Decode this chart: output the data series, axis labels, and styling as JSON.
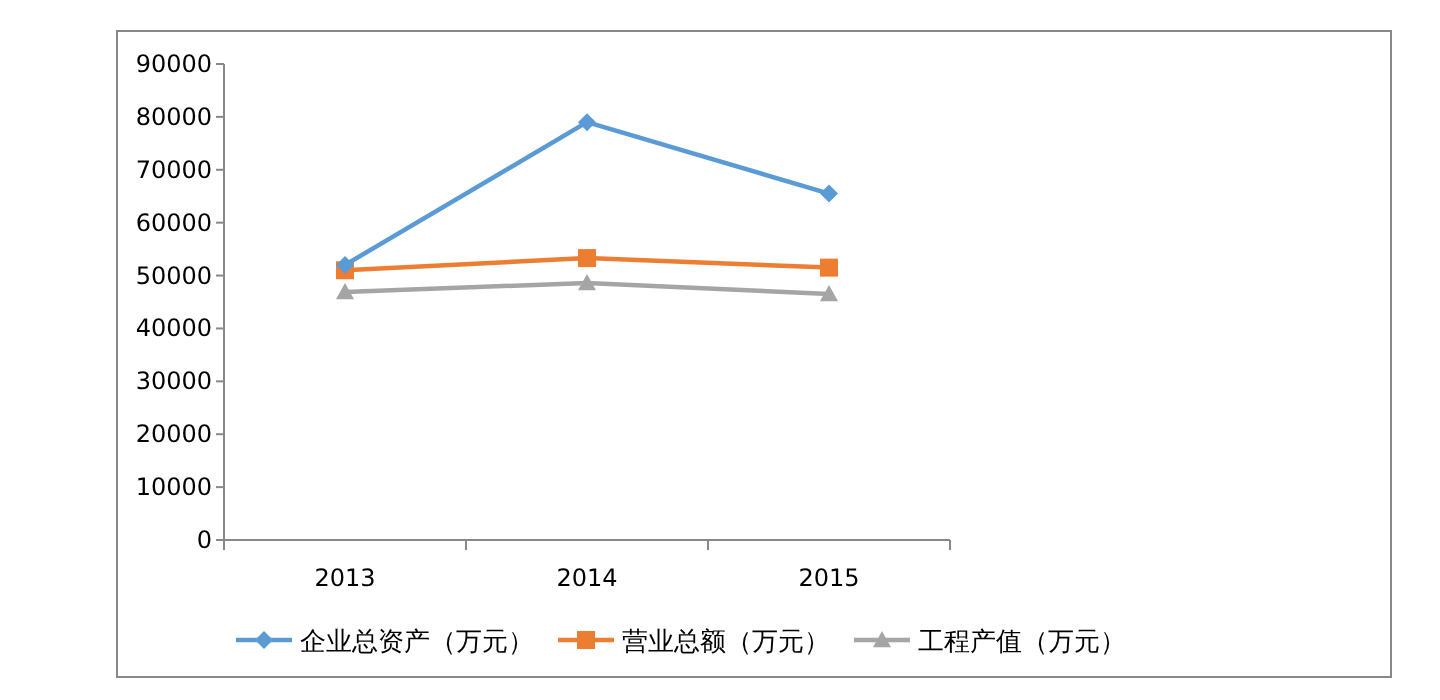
{
  "chart_data": {
    "type": "line",
    "categories": [
      "2013",
      "2014",
      "2015"
    ],
    "series": [
      {
        "name": "企业总资产（万元）",
        "color": "#5b9bd5",
        "marker": "diamond",
        "values": [
          52000,
          79000,
          65500
        ]
      },
      {
        "name": "营业总额（万元）",
        "color": "#ed7d31",
        "marker": "square",
        "values": [
          51000,
          53300,
          51500
        ]
      },
      {
        "name": "工程产值（万元）",
        "color": "#a5a5a5",
        "marker": "triangle",
        "values": [
          46900,
          48600,
          46500
        ]
      }
    ],
    "ylim": [
      0,
      90000
    ],
    "yticks": [
      0,
      10000,
      20000,
      30000,
      40000,
      50000,
      60000,
      70000,
      80000,
      90000
    ],
    "legend": "bottom"
  }
}
